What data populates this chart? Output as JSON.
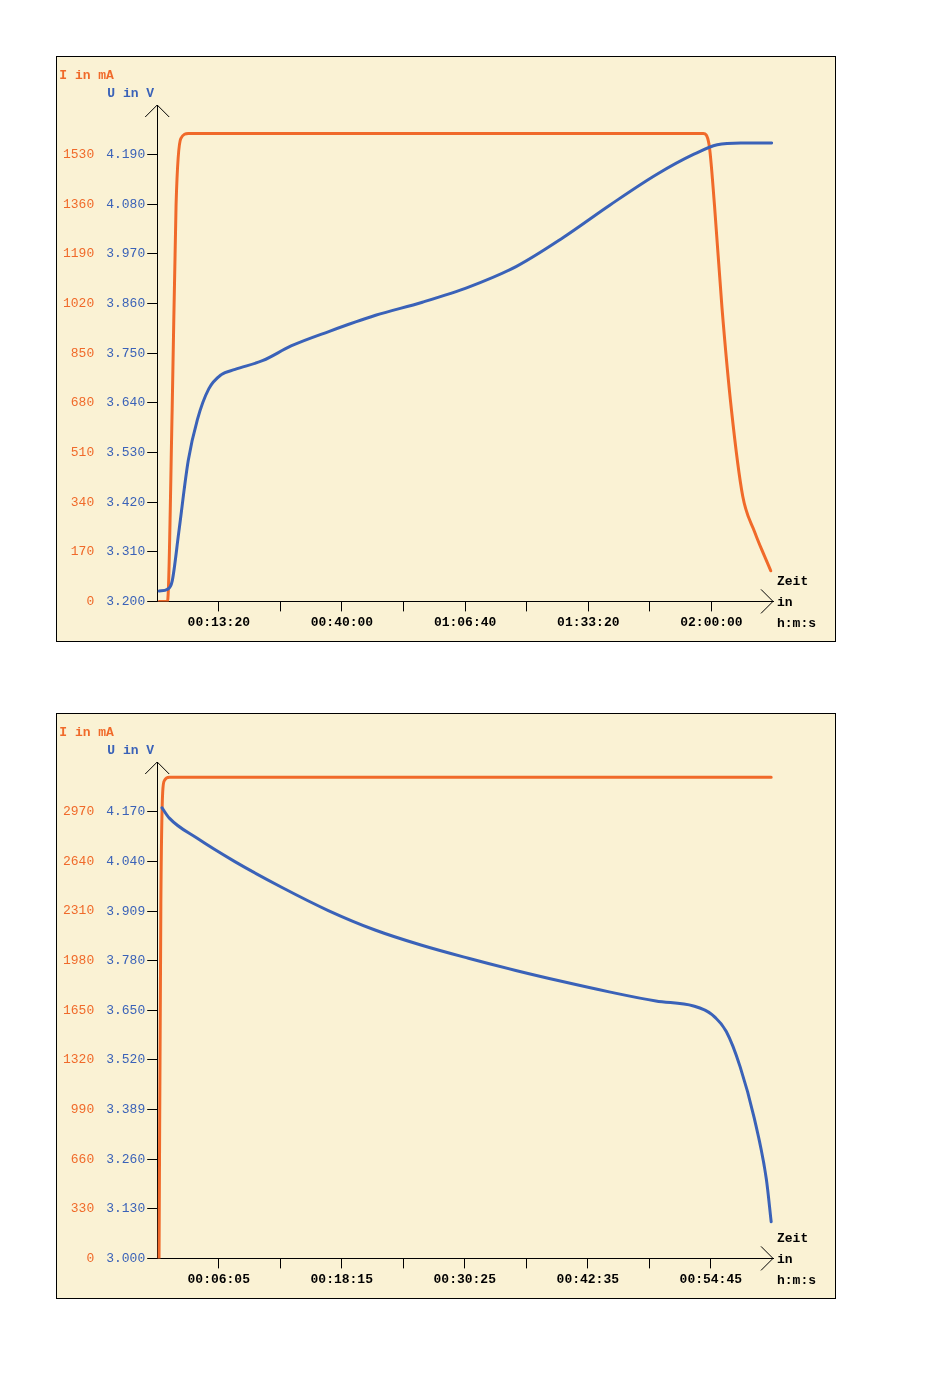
{
  "chart_data": [
    {
      "type": "line",
      "ylabel": "U in V",
      "y2label": "I in mA",
      "xlabel": "Zeit in h:m:s",
      "grid": false,
      "legend": false,
      "marker": "none",
      "line_style": "solid",
      "xlim": [
        0,
        2.2222
      ],
      "xticks": [
        {
          "value": 0.2222,
          "label": "00:13:20"
        },
        {
          "value": 0.4444,
          "label": null
        },
        {
          "value": 0.6667,
          "label": "00:40:00"
        },
        {
          "value": 0.8889,
          "label": null
        },
        {
          "value": 1.1111,
          "label": "01:06:40"
        },
        {
          "value": 1.3333,
          "label": null
        },
        {
          "value": 1.5556,
          "label": "01:33:20"
        },
        {
          "value": 1.7778,
          "label": null
        },
        {
          "value": 2.0,
          "label": "02:00:00"
        }
      ],
      "ylim": [
        3.2,
        4.3
      ],
      "yticks": [
        {
          "value": 3.2,
          "label": "3.200"
        },
        {
          "value": 3.31,
          "label": "3.310"
        },
        {
          "value": 3.42,
          "label": "3.420"
        },
        {
          "value": 3.53,
          "label": "3.530"
        },
        {
          "value": 3.64,
          "label": "3.640"
        },
        {
          "value": 3.75,
          "label": "3.750"
        },
        {
          "value": 3.86,
          "label": "3.860"
        },
        {
          "value": 3.97,
          "label": "3.970"
        },
        {
          "value": 4.08,
          "label": "4.080"
        },
        {
          "value": 4.19,
          "label": "4.190"
        }
      ],
      "y2lim": [
        0,
        1700
      ],
      "y2ticks": [
        0,
        170,
        340,
        510,
        680,
        850,
        1020,
        1190,
        1360,
        1530
      ],
      "series": [
        {
          "color": "#3a62b8",
          "x": [
            0.007,
            0.037,
            0.054,
            0.078,
            0.112,
            0.145,
            0.186,
            0.23,
            0.281,
            0.382,
            0.483,
            0.619,
            0.788,
            0.957,
            1.126,
            1.295,
            1.464,
            1.633,
            1.802,
            1.937,
            2.021,
            2.106,
            2.217
          ],
          "values": [
            3.223,
            3.227,
            3.245,
            3.354,
            3.512,
            3.603,
            3.671,
            3.702,
            3.714,
            3.734,
            3.766,
            3.798,
            3.834,
            3.863,
            3.897,
            3.942,
            4.006,
            4.078,
            4.146,
            4.191,
            4.212,
            4.216,
            4.216
          ]
        },
        {
          "color": "#f06a2a",
          "axis": "y2",
          "x": [
            0.007,
            0.037,
            0.054,
            0.068,
            0.085,
            0.112,
            1.971,
            1.991,
            2.011,
            2.038,
            2.072,
            2.113,
            2.156,
            2.214
          ],
          "values": [
            0,
            0,
            658,
            1357,
            1585,
            1602,
            1602,
            1567,
            1357,
            1007,
            658,
            360,
            238,
            105
          ]
        }
      ]
    },
    {
      "type": "line",
      "ylabel": "U in V",
      "y2label": "I in mA",
      "xlabel": "Zeit in h:m:s",
      "grid": false,
      "legend": false,
      "marker": "none",
      "line_style": "solid",
      "xlim": [
        0,
        1.015
      ],
      "xticks": [
        {
          "value": 0.1014,
          "label": "00:06:05"
        },
        {
          "value": 0.2028,
          "label": null
        },
        {
          "value": 0.3042,
          "label": "00:18:15"
        },
        {
          "value": 0.4056,
          "label": null
        },
        {
          "value": 0.5069,
          "label": "00:30:25"
        },
        {
          "value": 0.6083,
          "label": null
        },
        {
          "value": 0.7097,
          "label": "00:42:35"
        },
        {
          "value": 0.8111,
          "label": null
        },
        {
          "value": 0.9125,
          "label": "00:54:45"
        }
      ],
      "ylim": [
        3.0,
        4.3
      ],
      "yticks": [
        {
          "value": 3.0,
          "label": "3.000"
        },
        {
          "value": 3.13,
          "label": "3.130"
        },
        {
          "value": 3.26,
          "label": "3.260"
        },
        {
          "value": 3.389,
          "label": "3.389"
        },
        {
          "value": 3.52,
          "label": "3.520"
        },
        {
          "value": 3.65,
          "label": "3.650"
        },
        {
          "value": 3.78,
          "label": "3.780"
        },
        {
          "value": 3.909,
          "label": "3.909"
        },
        {
          "value": 4.04,
          "label": "4.040"
        },
        {
          "value": 4.17,
          "label": "4.170"
        }
      ],
      "y2lim": [
        0,
        3300
      ],
      "y2ticks": [
        0,
        330,
        660,
        990,
        1320,
        1650,
        1980,
        2310,
        2640,
        2970
      ],
      "series": [
        {
          "color": "#3a62b8",
          "x": [
            0.008,
            0.02,
            0.066,
            0.128,
            0.205,
            0.282,
            0.359,
            0.436,
            0.513,
            0.591,
            0.668,
            0.745,
            0.822,
            0.884,
            0.914,
            0.938,
            0.961,
            0.984,
            1.004,
            1.012
          ],
          "values": [
            4.18,
            4.153,
            4.1,
            4.039,
            3.972,
            3.911,
            3.86,
            3.82,
            3.786,
            3.754,
            3.725,
            3.698,
            3.674,
            3.661,
            3.639,
            3.594,
            3.501,
            3.368,
            3.208,
            3.096
          ]
        },
        {
          "color": "#f06a2a",
          "axis": "y2",
          "x": [
            0.003,
            0.006,
            0.009,
            0.012,
            0.02,
            1.012
          ],
          "values": [
            0,
            2353,
            3097,
            3178,
            3199,
            3199
          ]
        }
      ]
    }
  ]
}
